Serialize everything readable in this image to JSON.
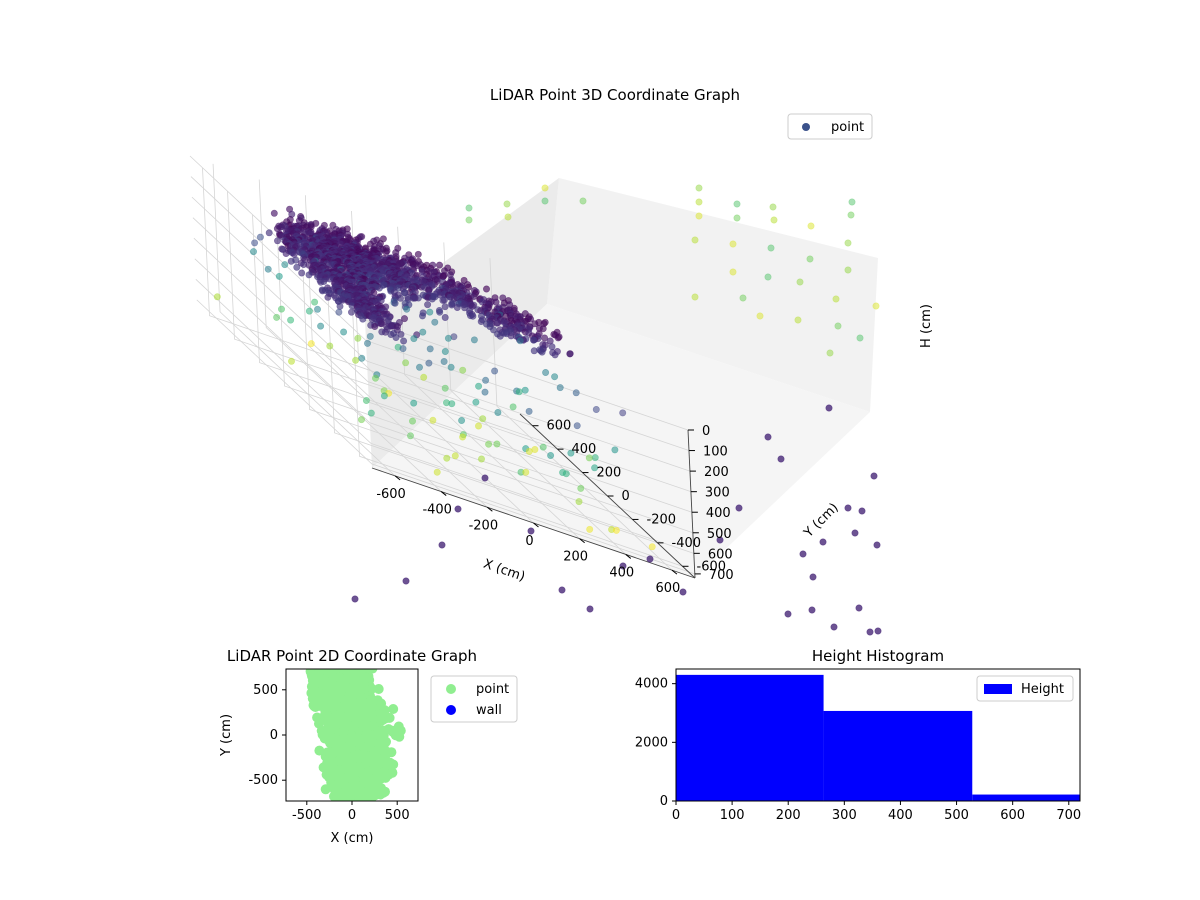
{
  "chart_data": [
    {
      "type": "scatter",
      "projection": "3d",
      "title": "LiDAR Point 3D Coordinate Graph",
      "xlabel": "X (cm)",
      "ylabel": "Y (cm)",
      "zlabel": "H (cm)",
      "xlim": [
        -700,
        700
      ],
      "ylim": [
        -700,
        700
      ],
      "zlim": [
        0,
        720
      ],
      "z_axis_inverted": true,
      "xticks": [
        -600,
        -400,
        -200,
        0,
        200,
        400,
        600
      ],
      "yticks": [
        -600,
        -400,
        -200,
        0,
        200,
        400,
        600
      ],
      "zticks": [
        0,
        100,
        200,
        300,
        400,
        500,
        600,
        700
      ],
      "grid": true,
      "colormap": "viridis",
      "legend": {
        "position": "top-right",
        "entries": [
          {
            "label": "point",
            "color": "#3b528b"
          }
        ]
      }
    },
    {
      "type": "scatter",
      "title": "LiDAR Point 2D Coordinate Graph",
      "xlabel": "X (cm)",
      "ylabel": "Y (cm)",
      "xlim": [
        -730,
        730
      ],
      "ylim": [
        -730,
        730
      ],
      "xticks": [
        -500,
        0,
        500
      ],
      "yticks": [
        -500,
        0,
        500
      ],
      "series": [
        {
          "name": "point",
          "color": "#90ee90"
        },
        {
          "name": "wall",
          "color": "#0000ff"
        }
      ],
      "legend": {
        "position": "outside-right"
      }
    },
    {
      "type": "bar",
      "subtype": "histogram",
      "title": "Height Histogram",
      "bins": [
        [
          0,
          263
        ],
        [
          263,
          528
        ],
        [
          528,
          720
        ]
      ],
      "counts": [
        4300,
        3070,
        220
      ],
      "color": "#0000ff",
      "xlim": [
        0,
        720
      ],
      "ylim": [
        0,
        4500
      ],
      "xticks": [
        0,
        100,
        200,
        300,
        400,
        500,
        600,
        700
      ],
      "yticks": [
        0,
        2000,
        4000
      ],
      "series": [
        {
          "name": "Height"
        }
      ],
      "legend": {
        "position": "top-right"
      }
    }
  ]
}
